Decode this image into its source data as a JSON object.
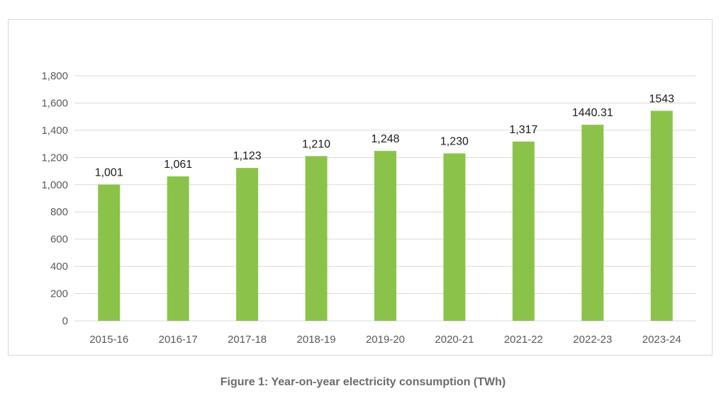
{
  "figure": {
    "caption": "Figure 1: Year-on-year electricity consumption (TWh)"
  },
  "chart_data": {
    "type": "bar",
    "categories": [
      "2015-16",
      "2016-17",
      "2017-18",
      "2018-19",
      "2019-20",
      "2020-21",
      "2021-22",
      "2022-23",
      "2023-24"
    ],
    "values": [
      1001,
      1061,
      1123,
      1210,
      1248,
      1230,
      1317,
      1440.31,
      1543
    ],
    "data_labels": [
      "1,001",
      "1,061",
      "1,123",
      "1,210",
      "1,248",
      "1,230",
      "1,317",
      "1440.31",
      "1543"
    ],
    "y_ticks": [
      "0",
      "200",
      "400",
      "600",
      "800",
      "1,000",
      "1,200",
      "1,400",
      "1,600",
      "1,800"
    ],
    "ylim": [
      0,
      1800
    ],
    "grid": true,
    "legend": "none",
    "title": "",
    "xlabel": "",
    "ylabel": "",
    "colors": {
      "bar": "#8bc34a",
      "grid": "#d9d9d9",
      "axis_text": "#595959"
    }
  }
}
